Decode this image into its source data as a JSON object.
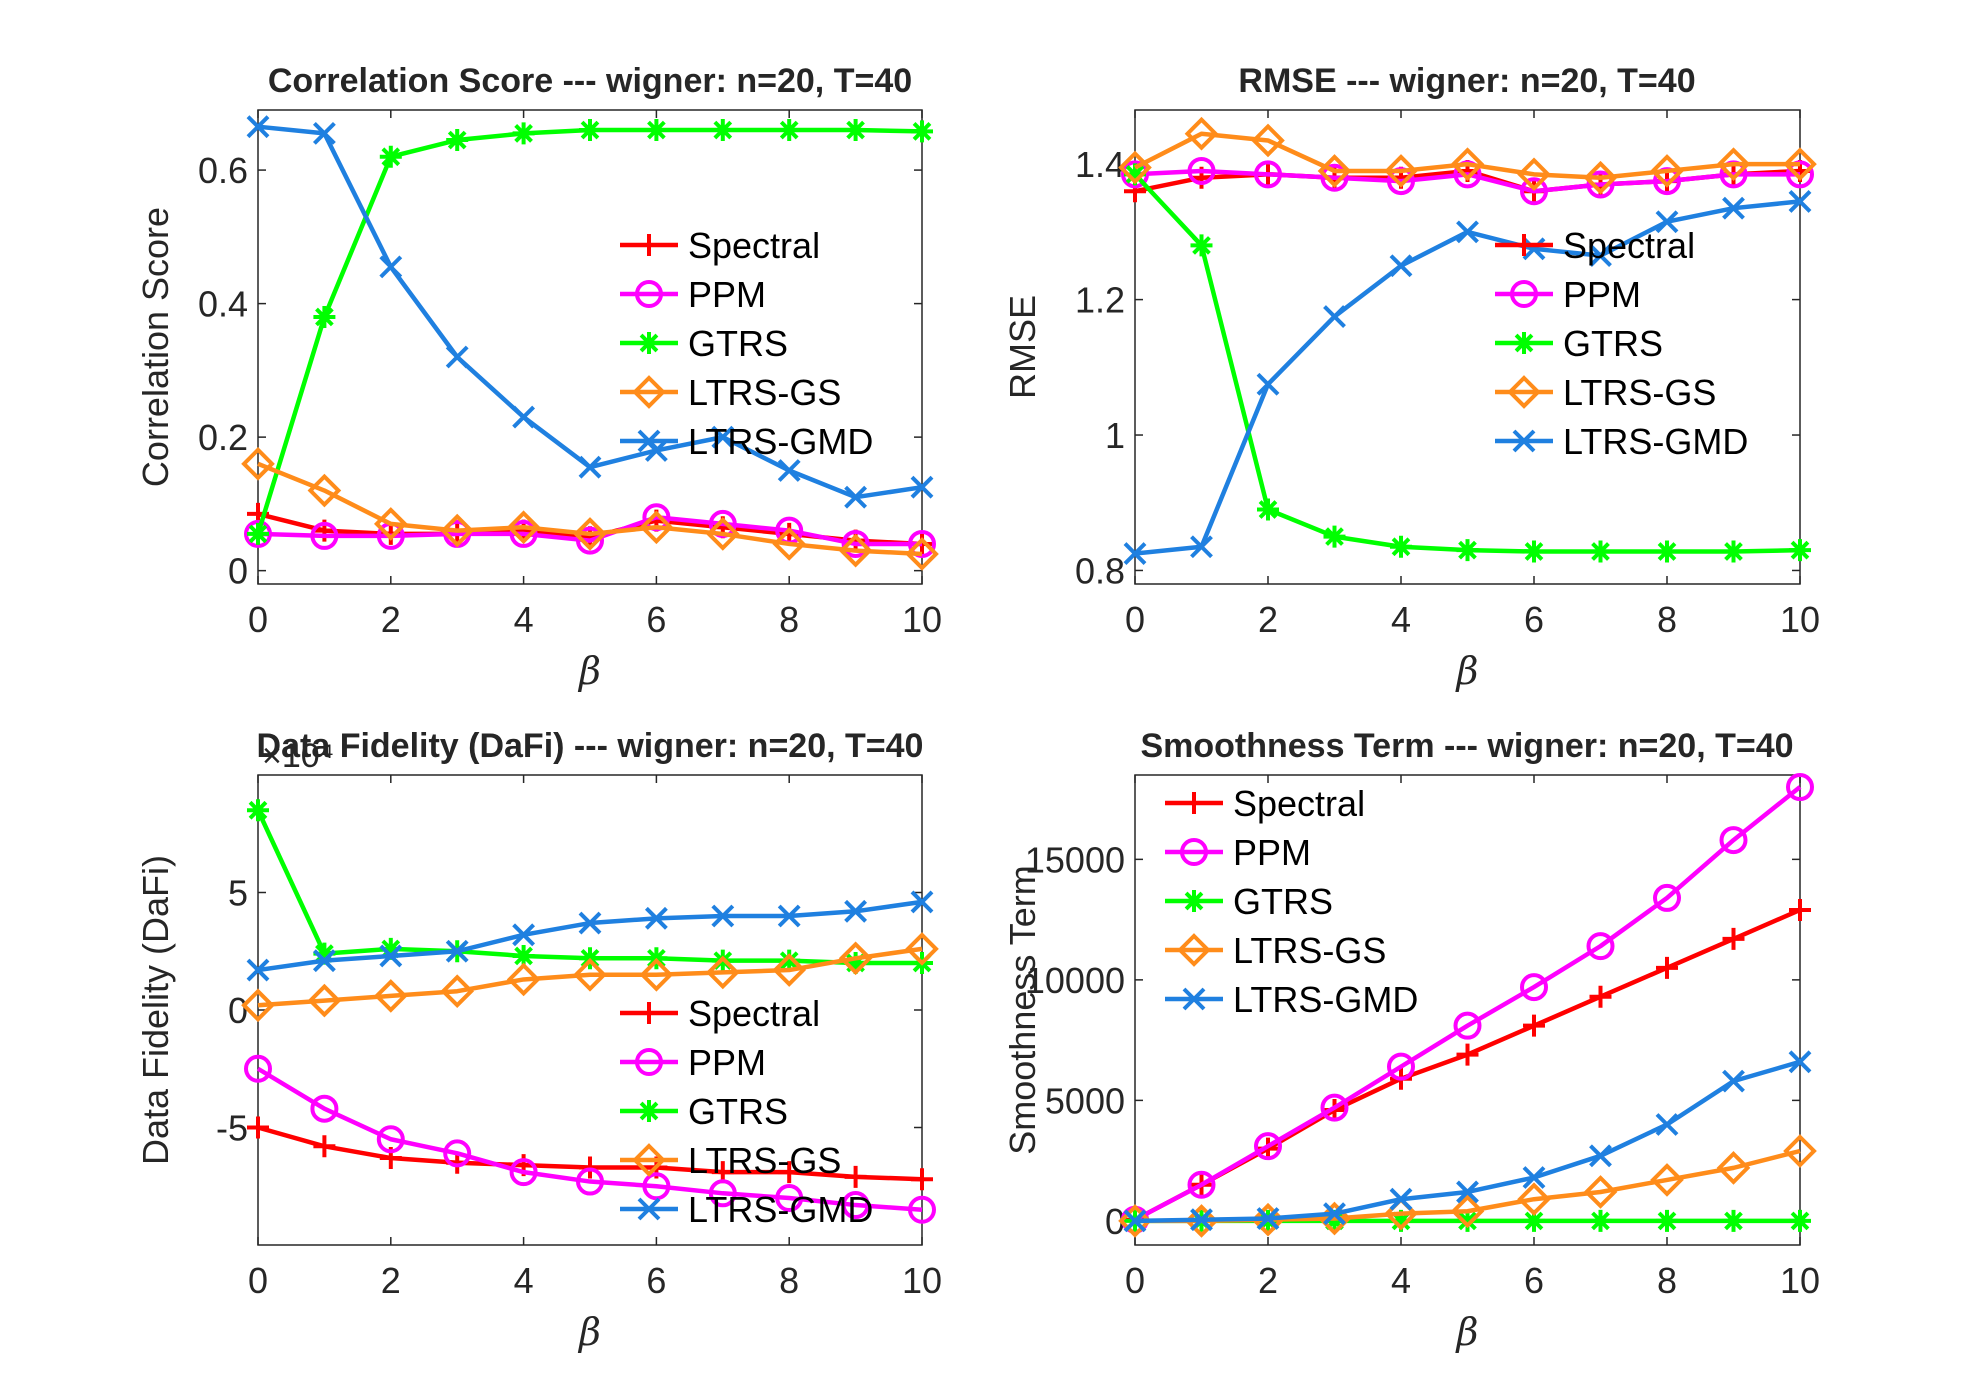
{
  "chart_data": [
    {
      "type": "line",
      "title": "Correlation Score --- wigner: n=20, T=40",
      "xlabel": "β",
      "ylabel": "Correlation Score",
      "xlim": [
        0,
        10
      ],
      "ylim": [
        -0.02,
        0.69
      ],
      "xticks": [
        "0",
        "2",
        "4",
        "6",
        "8",
        "10"
      ],
      "yticks": [
        "0",
        "0.2",
        "0.4",
        "0.6"
      ],
      "legend_position": "center-right",
      "grid": false,
      "x": [
        0,
        1,
        2,
        3,
        4,
        5,
        6,
        7,
        8,
        9,
        10
      ],
      "series": [
        {
          "name": "Spectral",
          "color": "#ff0000",
          "marker": "plus",
          "values": [
            0.085,
            0.06,
            0.055,
            0.055,
            0.06,
            0.05,
            0.075,
            0.065,
            0.055,
            0.045,
            0.04
          ]
        },
        {
          "name": "PPM",
          "color": "#ff00ff",
          "marker": "circle",
          "values": [
            0.055,
            0.052,
            0.052,
            0.055,
            0.055,
            0.045,
            0.08,
            0.07,
            0.06,
            0.04,
            0.04
          ]
        },
        {
          "name": "GTRS",
          "color": "#00ff00",
          "marker": "star",
          "values": [
            0.055,
            0.38,
            0.62,
            0.645,
            0.655,
            0.66,
            0.66,
            0.66,
            0.66,
            0.66,
            0.658
          ]
        },
        {
          "name": "LTRS-GS",
          "color": "#ff8c1a",
          "marker": "diamond",
          "values": [
            0.16,
            0.12,
            0.07,
            0.06,
            0.065,
            0.055,
            0.065,
            0.055,
            0.04,
            0.03,
            0.025
          ]
        },
        {
          "name": "LTRS-GMD",
          "color": "#1f80e0",
          "marker": "x",
          "values": [
            0.665,
            0.655,
            0.455,
            0.32,
            0.23,
            0.155,
            0.18,
            0.2,
            0.15,
            0.11,
            0.125
          ]
        }
      ]
    },
    {
      "type": "line",
      "title": "RMSE --- wigner: n=20, T=40",
      "xlabel": "β",
      "ylabel": "RMSE",
      "xlim": [
        0,
        10
      ],
      "ylim": [
        0.78,
        1.48
      ],
      "xticks": [
        "0",
        "2",
        "4",
        "6",
        "8",
        "10"
      ],
      "yticks": [
        "0.8",
        "1",
        "1.2",
        "1.4"
      ],
      "legend_position": "center-right",
      "grid": false,
      "x": [
        0,
        1,
        2,
        3,
        4,
        5,
        6,
        7,
        8,
        9,
        10
      ],
      "series": [
        {
          "name": "Spectral",
          "color": "#ff0000",
          "marker": "plus",
          "values": [
            1.36,
            1.38,
            1.385,
            1.38,
            1.38,
            1.39,
            1.36,
            1.37,
            1.375,
            1.385,
            1.39
          ]
        },
        {
          "name": "PPM",
          "color": "#ff00ff",
          "marker": "circle",
          "values": [
            1.385,
            1.39,
            1.385,
            1.38,
            1.375,
            1.385,
            1.36,
            1.37,
            1.375,
            1.385,
            1.385
          ]
        },
        {
          "name": "GTRS",
          "color": "#00ff00",
          "marker": "star",
          "values": [
            1.385,
            1.28,
            0.89,
            0.85,
            0.835,
            0.83,
            0.828,
            0.828,
            0.828,
            0.828,
            0.83
          ]
        },
        {
          "name": "LTRS-GS",
          "color": "#ff8c1a",
          "marker": "diamond",
          "values": [
            1.395,
            1.445,
            1.435,
            1.39,
            1.39,
            1.4,
            1.385,
            1.38,
            1.39,
            1.4,
            1.4
          ]
        },
        {
          "name": "LTRS-GMD",
          "color": "#1f80e0",
          "marker": "x",
          "values": [
            0.825,
            0.835,
            1.075,
            1.175,
            1.25,
            1.3,
            1.275,
            1.265,
            1.315,
            1.335,
            1.345
          ]
        }
      ]
    },
    {
      "type": "line",
      "title": "Data Fidelity (DaFi) --- wigner: n=20, T=40",
      "xlabel": "β",
      "ylabel": "Data Fidelity (DaFi)",
      "ylabel_multiplier": "×10⁴",
      "xlim": [
        0,
        10
      ],
      "ylim": [
        -10,
        10
      ],
      "xticks": [
        "0",
        "2",
        "4",
        "6",
        "8",
        "10"
      ],
      "yticks": [
        "-5",
        "0",
        "5"
      ],
      "legend_position": "bottom-right",
      "grid": false,
      "x": [
        0,
        1,
        2,
        3,
        4,
        5,
        6,
        7,
        8,
        9,
        10
      ],
      "series": [
        {
          "name": "Spectral",
          "color": "#ff0000",
          "marker": "plus",
          "values": [
            -5.0,
            -5.8,
            -6.3,
            -6.5,
            -6.6,
            -6.7,
            -6.7,
            -6.9,
            -6.9,
            -7.1,
            -7.2
          ]
        },
        {
          "name": "PPM",
          "color": "#ff00ff",
          "marker": "circle",
          "values": [
            -2.5,
            -4.2,
            -5.5,
            -6.1,
            -6.9,
            -7.3,
            -7.5,
            -7.8,
            -8.0,
            -8.3,
            -8.5
          ]
        },
        {
          "name": "GTRS",
          "color": "#00ff00",
          "marker": "star",
          "values": [
            8.5,
            2.4,
            2.6,
            2.5,
            2.3,
            2.2,
            2.2,
            2.1,
            2.1,
            2.0,
            2.0
          ]
        },
        {
          "name": "LTRS-GS",
          "color": "#ff8c1a",
          "marker": "diamond",
          "values": [
            0.2,
            0.4,
            0.6,
            0.8,
            1.3,
            1.5,
            1.5,
            1.6,
            1.7,
            2.2,
            2.6
          ]
        },
        {
          "name": "LTRS-GMD",
          "color": "#1f80e0",
          "marker": "x",
          "values": [
            1.7,
            2.1,
            2.3,
            2.5,
            3.2,
            3.7,
            3.9,
            4.0,
            4.0,
            4.2,
            4.6
          ]
        }
      ]
    },
    {
      "type": "line",
      "title": "Smoothness Term  --- wigner: n=20, T=40",
      "xlabel": "β",
      "ylabel": "Smoothness Term",
      "xlim": [
        0,
        10
      ],
      "ylim": [
        -1000,
        18500
      ],
      "xticks": [
        "0",
        "2",
        "4",
        "6",
        "8",
        "10"
      ],
      "yticks": [
        "0",
        "5000",
        "10000",
        "15000"
      ],
      "legend_position": "top-left",
      "grid": false,
      "x": [
        0,
        1,
        2,
        3,
        4,
        5,
        6,
        7,
        8,
        9,
        10
      ],
      "series": [
        {
          "name": "Spectral",
          "color": "#ff0000",
          "marker": "plus",
          "values": [
            50,
            1500,
            3000,
            4600,
            5900,
            6900,
            8100,
            9300,
            10500,
            11700,
            12900
          ]
        },
        {
          "name": "PPM",
          "color": "#ff00ff",
          "marker": "circle",
          "values": [
            50,
            1500,
            3100,
            4700,
            6400,
            8100,
            9700,
            11400,
            13400,
            15800,
            18000
          ]
        },
        {
          "name": "GTRS",
          "color": "#00ff00",
          "marker": "star",
          "values": [
            0,
            0,
            0,
            0,
            0,
            0,
            0,
            0,
            0,
            0,
            0
          ]
        },
        {
          "name": "LTRS-GS",
          "color": "#ff8c1a",
          "marker": "diamond",
          "values": [
            0,
            0,
            50,
            100,
            300,
            400,
            900,
            1200,
            1700,
            2200,
            2900
          ]
        },
        {
          "name": "LTRS-GMD",
          "color": "#1f80e0",
          "marker": "x",
          "values": [
            0,
            50,
            100,
            300,
            900,
            1200,
            1800,
            2700,
            4000,
            5800,
            6600
          ]
        }
      ]
    }
  ]
}
